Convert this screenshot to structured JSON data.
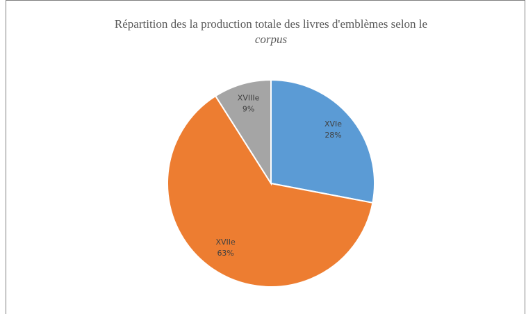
{
  "chart_data": {
    "type": "pie",
    "title": "Répartition des la production totale des livres d'emblèmes selon le",
    "title_emphasis": "corpus",
    "categories": [
      "XVIe",
      "XVIIe",
      "XVIIIe"
    ],
    "values": [
      28,
      63,
      9
    ],
    "value_labels": [
      "28%",
      "63%",
      "9%"
    ],
    "colors": [
      "#5b9bd5",
      "#ed7d31",
      "#a5a5a5"
    ]
  }
}
